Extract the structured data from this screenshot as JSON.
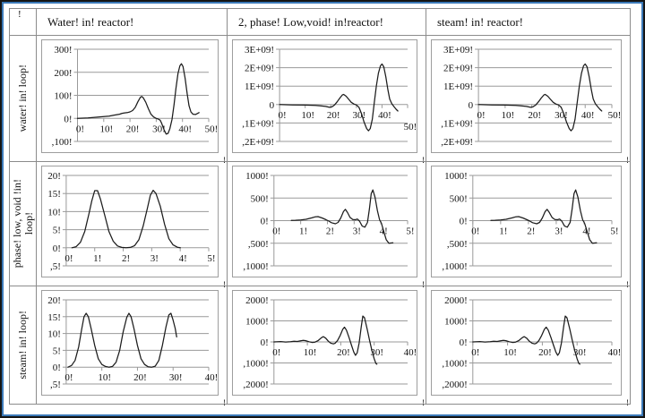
{
  "marks": {
    "corner": "!",
    "cell": "!"
  },
  "columns": [
    {
      "header": "Water! in! reactor!"
    },
    {
      "header": "2, phase! Low,void! in!reactor!"
    },
    {
      "header": "steam! in! reactor!"
    }
  ],
  "rows": [
    {
      "label": "water!  in! loop!"
    },
    {
      "label": "phase! low, void !in!\nloop!"
    },
    {
      "label": "steam! in! loop!"
    }
  ],
  "colors": {
    "frame_border": "#151515",
    "frame_inner_blue": "#3b79b8",
    "grid_border": "#8c8c8c",
    "chart_gridline": "#9a9a9a",
    "curve": "#1c1c1c"
  },
  "chart_series": {
    "water_loop": [
      [
        0,
        0
      ],
      [
        2,
        1
      ],
      [
        4,
        2
      ],
      [
        6,
        4
      ],
      [
        8,
        6
      ],
      [
        10,
        8
      ],
      [
        12,
        10
      ],
      [
        14,
        14
      ],
      [
        16,
        18
      ],
      [
        17,
        22
      ],
      [
        18,
        24
      ],
      [
        19,
        25
      ],
      [
        20,
        28
      ],
      [
        21,
        34
      ],
      [
        22,
        48
      ],
      [
        23,
        72
      ],
      [
        24,
        92
      ],
      [
        24.5,
        95
      ],
      [
        25,
        90
      ],
      [
        26,
        70
      ],
      [
        27,
        42
      ],
      [
        28,
        18
      ],
      [
        29,
        6
      ],
      [
        30,
        0
      ],
      [
        30.8,
        -3
      ],
      [
        31.5,
        -8
      ],
      [
        32,
        -20
      ],
      [
        33,
        -50
      ],
      [
        33.8,
        -68
      ],
      [
        34.5,
        -65
      ],
      [
        35.2,
        -45
      ],
      [
        36,
        -5
      ],
      [
        36.8,
        60
      ],
      [
        37.5,
        130
      ],
      [
        38.3,
        195
      ],
      [
        39,
        228
      ],
      [
        39.6,
        237
      ],
      [
        40.2,
        225
      ],
      [
        41,
        175
      ],
      [
        41.8,
        105
      ],
      [
        42.5,
        55
      ],
      [
        43.2,
        28
      ],
      [
        44,
        18
      ],
      [
        45,
        17
      ],
      [
        46.3,
        25
      ]
    ],
    "reactor_e9": [
      [
        0,
        0
      ],
      [
        5,
        -0.02
      ],
      [
        10,
        -0.03
      ],
      [
        14,
        -0.05
      ],
      [
        16,
        -0.07
      ],
      [
        18,
        -0.1
      ],
      [
        19.5,
        -0.15
      ],
      [
        20.5,
        -0.12
      ],
      [
        21.5,
        -0.02
      ],
      [
        22.5,
        0.15
      ],
      [
        23.5,
        0.35
      ],
      [
        24.5,
        0.52
      ],
      [
        25,
        0.55
      ],
      [
        26,
        0.45
      ],
      [
        27,
        0.28
      ],
      [
        28,
        0.12
      ],
      [
        29,
        0.03
      ],
      [
        30,
        -0.02
      ],
      [
        31,
        -0.15
      ],
      [
        32,
        -0.5
      ],
      [
        33,
        -0.95
      ],
      [
        34,
        -1.3
      ],
      [
        34.7,
        -1.42
      ],
      [
        35.4,
        -1.3
      ],
      [
        36.2,
        -0.8
      ],
      [
        37,
        0.1
      ],
      [
        37.8,
        1.0
      ],
      [
        38.6,
        1.7
      ],
      [
        39.4,
        2.1
      ],
      [
        40,
        2.2
      ],
      [
        40.7,
        2.05
      ],
      [
        41.5,
        1.5
      ],
      [
        42.3,
        0.8
      ],
      [
        43,
        0.3
      ],
      [
        43.8,
        0.05
      ],
      [
        44.6,
        -0.1
      ],
      [
        45.5,
        -0.25
      ],
      [
        46.2,
        -0.35
      ]
    ],
    "void_loop": [
      [
        0.2,
        0
      ],
      [
        0.35,
        0.3
      ],
      [
        0.5,
        1.5
      ],
      [
        0.65,
        4.5
      ],
      [
        0.8,
        9.5
      ],
      [
        0.9,
        13
      ],
      [
        1.0,
        15.8
      ],
      [
        1.1,
        15.8
      ],
      [
        1.2,
        13.5
      ],
      [
        1.35,
        9
      ],
      [
        1.5,
        4.5
      ],
      [
        1.65,
        1.8
      ],
      [
        1.8,
        0.5
      ],
      [
        1.95,
        0.1
      ],
      [
        2.1,
        0
      ],
      [
        2.25,
        0.1
      ],
      [
        2.4,
        0.6
      ],
      [
        2.55,
        2.2
      ],
      [
        2.7,
        6
      ],
      [
        2.85,
        11
      ],
      [
        2.95,
        14.5
      ],
      [
        3.05,
        15.9
      ],
      [
        3.15,
        15
      ],
      [
        3.3,
        11.5
      ],
      [
        3.45,
        6.5
      ],
      [
        3.6,
        2.5
      ],
      [
        3.75,
        0.8
      ],
      [
        3.9,
        0.15
      ],
      [
        4.0,
        0
      ]
    ],
    "void_reactor": [
      [
        0.65,
        5
      ],
      [
        0.8,
        8
      ],
      [
        1.0,
        15
      ],
      [
        1.2,
        30
      ],
      [
        1.4,
        60
      ],
      [
        1.55,
        85
      ],
      [
        1.65,
        90
      ],
      [
        1.8,
        60
      ],
      [
        1.95,
        20
      ],
      [
        2.05,
        -10
      ],
      [
        2.15,
        -45
      ],
      [
        2.3,
        -70
      ],
      [
        2.4,
        -40
      ],
      [
        2.5,
        60
      ],
      [
        2.6,
        200
      ],
      [
        2.67,
        250
      ],
      [
        2.75,
        180
      ],
      [
        2.85,
        70
      ],
      [
        2.95,
        25
      ],
      [
        3.05,
        20
      ],
      [
        3.12,
        35
      ],
      [
        3.2,
        -10
      ],
      [
        3.3,
        -120
      ],
      [
        3.4,
        -145
      ],
      [
        3.5,
        -40
      ],
      [
        3.57,
        250
      ],
      [
        3.64,
        600
      ],
      [
        3.7,
        680
      ],
      [
        3.78,
        520
      ],
      [
        3.87,
        220
      ],
      [
        3.95,
        20
      ],
      [
        4.02,
        -60
      ],
      [
        4.1,
        -220
      ],
      [
        4.2,
        -420
      ],
      [
        4.3,
        -500
      ],
      [
        4.45,
        -490
      ]
    ],
    "steam_loop": [
      [
        0.5,
        0
      ],
      [
        1.5,
        0.5
      ],
      [
        2.5,
        2
      ],
      [
        3.5,
        6
      ],
      [
        4.3,
        11
      ],
      [
        5,
        15
      ],
      [
        5.6,
        16
      ],
      [
        6.2,
        15
      ],
      [
        7,
        11.5
      ],
      [
        8,
        6.5
      ],
      [
        9,
        2.5
      ],
      [
        10,
        0.8
      ],
      [
        11,
        0.2
      ],
      [
        12,
        0
      ],
      [
        13,
        0.2
      ],
      [
        14,
        1.5
      ],
      [
        15,
        5
      ],
      [
        16,
        10.5
      ],
      [
        17,
        14.8
      ],
      [
        17.6,
        16
      ],
      [
        18.2,
        15
      ],
      [
        19,
        11.5
      ],
      [
        20,
        6.5
      ],
      [
        21,
        2.5
      ],
      [
        22,
        0.8
      ],
      [
        23,
        0.1
      ],
      [
        24,
        0
      ],
      [
        25,
        0.3
      ],
      [
        26,
        2
      ],
      [
        27,
        6.5
      ],
      [
        28,
        12
      ],
      [
        28.8,
        15.5
      ],
      [
        29.4,
        16
      ],
      [
        30,
        14
      ],
      [
        30.6,
        11.5
      ],
      [
        31,
        9
      ]
    ],
    "steam_reactor": [
      [
        0,
        0
      ],
      [
        2,
        15
      ],
      [
        3.5,
        -5
      ],
      [
        5,
        10
      ],
      [
        6,
        30
      ],
      [
        7,
        20
      ],
      [
        8,
        50
      ],
      [
        8.8,
        75
      ],
      [
        9.5,
        60
      ],
      [
        10.5,
        10
      ],
      [
        11.5,
        -25
      ],
      [
        12.3,
        -10
      ],
      [
        13.2,
        60
      ],
      [
        14.2,
        200
      ],
      [
        14.8,
        250
      ],
      [
        15.5,
        180
      ],
      [
        16.3,
        30
      ],
      [
        17,
        -60
      ],
      [
        17.8,
        -95
      ],
      [
        18.3,
        -60
      ],
      [
        19,
        60
      ],
      [
        19.8,
        300
      ],
      [
        20.6,
        600
      ],
      [
        21.1,
        700
      ],
      [
        21.7,
        560
      ],
      [
        22.5,
        200
      ],
      [
        23.2,
        -150
      ],
      [
        23.9,
        -480
      ],
      [
        24.4,
        -640
      ],
      [
        24.9,
        -520
      ],
      [
        25.5,
        -50
      ],
      [
        26.1,
        700
      ],
      [
        26.6,
        1230
      ],
      [
        27.1,
        1150
      ],
      [
        27.9,
        600
      ],
      [
        28.6,
        80
      ],
      [
        29.3,
        -400
      ],
      [
        30,
        -800
      ],
      [
        30.5,
        -1020
      ],
      [
        30.8,
        -1060
      ]
    ]
  },
  "chart_data": [
    {
      "type": "line",
      "name": "water in loop / Water in reactor",
      "title": "",
      "xlabel": "",
      "ylabel": "",
      "xlim": [
        0,
        50
      ],
      "ylim": [
        -100,
        300
      ],
      "grid": true,
      "series_ref": "water_loop",
      "x_ticks": [
        {
          "v": 0,
          "label": "0!"
        },
        {
          "v": 10,
          "label": "10!"
        },
        {
          "v": 20,
          "label": "20!"
        },
        {
          "v": 30,
          "label": "30!"
        },
        {
          "v": 40,
          "label": "40!"
        },
        {
          "v": 50,
          "label": "50!"
        }
      ],
      "y_ticks": [
        {
          "v": 300,
          "label": "300!"
        },
        {
          "v": 200,
          "label": "200!"
        },
        {
          "v": 100,
          "label": "100!"
        },
        {
          "v": 0,
          "label": "0!"
        },
        {
          "v": -100,
          "label": ",100!"
        }
      ]
    },
    {
      "type": "line",
      "name": "water in loop / 2-phase low void in reactor",
      "title": "",
      "xlabel": "",
      "ylabel": "",
      "xlim": [
        0,
        50
      ],
      "ylim": [
        -2,
        3
      ],
      "grid": true,
      "series_ref": "reactor_e9",
      "y_unit": "1E+09",
      "last_x_label_dy": 13,
      "x_ticks": [
        {
          "v": 0,
          "label": "0!"
        },
        {
          "v": 10,
          "label": "10!"
        },
        {
          "v": 20,
          "label": "20!"
        },
        {
          "v": 30,
          "label": "30!"
        },
        {
          "v": 40,
          "label": "40!"
        },
        {
          "v": 50,
          "label": "50!"
        }
      ],
      "y_ticks": [
        {
          "v": 3,
          "label": "3E+09!"
        },
        {
          "v": 2,
          "label": "2E+09!"
        },
        {
          "v": 1,
          "label": "1E+09!"
        },
        {
          "v": 0,
          "label": "0"
        },
        {
          "v": -1,
          "label": ",1E+09!"
        },
        {
          "v": -2,
          "label": ",2E+09!"
        }
      ]
    },
    {
      "type": "line",
      "name": "water in loop / steam in reactor",
      "title": "",
      "xlabel": "",
      "ylabel": "",
      "xlim": [
        0,
        50
      ],
      "ylim": [
        -2,
        3
      ],
      "grid": true,
      "series_ref": "reactor_e9",
      "y_unit": "1E+09",
      "x_ticks": [
        {
          "v": 0,
          "label": "0!"
        },
        {
          "v": 10,
          "label": "10!"
        },
        {
          "v": 20,
          "label": "20!"
        },
        {
          "v": 30,
          "label": "30!"
        },
        {
          "v": 40,
          "label": "40!"
        },
        {
          "v": 50,
          "label": "50!"
        }
      ],
      "y_ticks": [
        {
          "v": 3,
          "label": "3E+09!"
        },
        {
          "v": 2,
          "label": "2E+09!"
        },
        {
          "v": 1,
          "label": "1E+09!"
        },
        {
          "v": 0,
          "label": "0"
        },
        {
          "v": -1,
          "label": ",1E+09!"
        },
        {
          "v": -2,
          "label": ",2E+09!"
        }
      ]
    },
    {
      "type": "line",
      "name": "2-phase low void in loop / Water in reactor",
      "title": "",
      "xlabel": "",
      "ylabel": "",
      "xlim": [
        0,
        5
      ],
      "ylim": [
        -5,
        20
      ],
      "grid": true,
      "series_ref": "void_loop",
      "x_ticks": [
        {
          "v": 0,
          "label": "0!"
        },
        {
          "v": 1,
          "label": "1!"
        },
        {
          "v": 2,
          "label": "2!"
        },
        {
          "v": 3,
          "label": "3!"
        },
        {
          "v": 4,
          "label": "4!"
        },
        {
          "v": 5,
          "label": "5!"
        }
      ],
      "y_ticks": [
        {
          "v": 20,
          "label": "20!"
        },
        {
          "v": 15,
          "label": "15!"
        },
        {
          "v": 10,
          "label": "10!"
        },
        {
          "v": 5,
          "label": "5!"
        },
        {
          "v": 0,
          "label": "0!"
        },
        {
          "v": -5,
          "label": ",5!"
        }
      ]
    },
    {
      "type": "line",
      "name": "2-phase low void in loop / 2-phase low void in reactor",
      "title": "",
      "xlabel": "",
      "ylabel": "",
      "xlim": [
        0,
        5
      ],
      "ylim": [
        -1000,
        1000
      ],
      "grid": true,
      "series_ref": "void_reactor",
      "x_ticks": [
        {
          "v": 0,
          "label": "0!"
        },
        {
          "v": 1,
          "label": "1!"
        },
        {
          "v": 2,
          "label": "2!"
        },
        {
          "v": 3,
          "label": "3!"
        },
        {
          "v": 4,
          "label": "4!"
        },
        {
          "v": 5,
          "label": "5!"
        }
      ],
      "y_ticks": [
        {
          "v": 1000,
          "label": "1000!"
        },
        {
          "v": 500,
          "label": "500!"
        },
        {
          "v": 0,
          "label": "0!"
        },
        {
          "v": -500,
          "label": ",500!"
        },
        {
          "v": -1000,
          "label": ",1000!"
        }
      ]
    },
    {
      "type": "line",
      "name": "2-phase low void in loop / steam in reactor",
      "title": "",
      "xlabel": "",
      "ylabel": "",
      "xlim": [
        0,
        5
      ],
      "ylim": [
        -1000,
        1000
      ],
      "grid": true,
      "series_ref": "void_reactor",
      "x_ticks": [
        {
          "v": 0,
          "label": "0!"
        },
        {
          "v": 1,
          "label": "1!"
        },
        {
          "v": 2,
          "label": "2!"
        },
        {
          "v": 3,
          "label": "3!"
        },
        {
          "v": 4,
          "label": "4!"
        },
        {
          "v": 5,
          "label": "5!"
        }
      ],
      "y_ticks": [
        {
          "v": 1000,
          "label": "1000!"
        },
        {
          "v": 500,
          "label": "500!"
        },
        {
          "v": 0,
          "label": "0!"
        },
        {
          "v": -500,
          "label": ",500!"
        },
        {
          "v": -1000,
          "label": ",1000!"
        }
      ]
    },
    {
      "type": "line",
      "name": "steam in loop / Water in reactor",
      "title": "",
      "xlabel": "",
      "ylabel": "",
      "xlim": [
        0,
        40
      ],
      "ylim": [
        -5,
        20
      ],
      "grid": true,
      "series_ref": "steam_loop",
      "x_ticks": [
        {
          "v": 0,
          "label": "0!"
        },
        {
          "v": 10,
          "label": "10!"
        },
        {
          "v": 20,
          "label": "20!"
        },
        {
          "v": 30,
          "label": "30!"
        },
        {
          "v": 40,
          "label": "40!"
        }
      ],
      "y_ticks": [
        {
          "v": 20,
          "label": "20!"
        },
        {
          "v": 15,
          "label": "15!"
        },
        {
          "v": 10,
          "label": "10!"
        },
        {
          "v": 5,
          "label": "5!"
        },
        {
          "v": 0,
          "label": "0!"
        },
        {
          "v": -5,
          "label": ",5!"
        }
      ]
    },
    {
      "type": "line",
      "name": "steam in loop / 2-phase low void in reactor",
      "title": "",
      "xlabel": "",
      "ylabel": "",
      "xlim": [
        0,
        40
      ],
      "ylim": [
        -2000,
        2000
      ],
      "grid": true,
      "series_ref": "steam_reactor",
      "x_ticks": [
        {
          "v": 0,
          "label": "0!"
        },
        {
          "v": 10,
          "label": "10!"
        },
        {
          "v": 20,
          "label": "20!"
        },
        {
          "v": 30,
          "label": "30!"
        },
        {
          "v": 40,
          "label": "40!"
        }
      ],
      "y_ticks": [
        {
          "v": 2000,
          "label": "2000!"
        },
        {
          "v": 1000,
          "label": "1000!"
        },
        {
          "v": 0,
          "label": "0!"
        },
        {
          "v": -1000,
          "label": ",1000!"
        },
        {
          "v": -2000,
          "label": ",2000!"
        }
      ]
    },
    {
      "type": "line",
      "name": "steam in loop / steam in reactor",
      "title": "",
      "xlabel": "",
      "ylabel": "",
      "xlim": [
        0,
        40
      ],
      "ylim": [
        -2000,
        2000
      ],
      "grid": true,
      "series_ref": "steam_reactor",
      "x_ticks": [
        {
          "v": 0,
          "label": "0!"
        },
        {
          "v": 10,
          "label": "10!"
        },
        {
          "v": 20,
          "label": "20!"
        },
        {
          "v": 30,
          "label": "30!"
        },
        {
          "v": 40,
          "label": "40!"
        }
      ],
      "y_ticks": [
        {
          "v": 2000,
          "label": "2000!"
        },
        {
          "v": 1000,
          "label": "1000!"
        },
        {
          "v": 0,
          "label": "0!"
        },
        {
          "v": -1000,
          "label": ",1000!"
        },
        {
          "v": -2000,
          "label": ",2000!"
        }
      ]
    }
  ]
}
